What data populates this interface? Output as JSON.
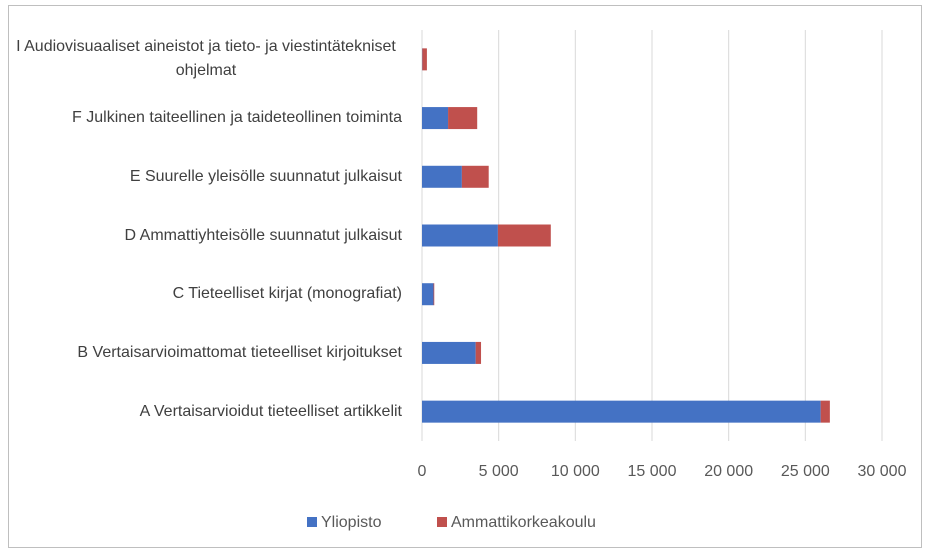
{
  "chart_data": {
    "type": "stacked-barh",
    "categories": [
      "A Vertaisarvioidut tieteelliset artikkelit",
      "B Vertaisarvioimattomat tieteelliset kirjoitukset",
      "C Tieteelliset kirjat (monografiat)",
      "D Ammattiyhteisölle suunnatut julkaisut",
      "E Suurelle yleisölle suunnatut julkaisut",
      "F Julkinen taiteellinen ja taideteollinen toiminta",
      "I Audiovisuaaliset aineistot ja tieto- ja viestintätekniset ohjelmat"
    ],
    "series": [
      {
        "name": "Yliopisto",
        "color": "#4472c4",
        "values": [
          26000,
          3500,
          750,
          4950,
          2600,
          1700,
          20
        ]
      },
      {
        "name": "Ammattikorkeakoulu",
        "color": "#c0504d",
        "values": [
          600,
          350,
          50,
          3450,
          1750,
          1900,
          300
        ]
      }
    ],
    "xlim": [
      0,
      30000
    ],
    "xticks": [
      0,
      {
        "value": 5000,
        "label": "5 000"
      },
      {
        "value": 10000,
        "label": "10 000"
      },
      {
        "value": 15000,
        "label": "15 000"
      },
      {
        "value": 20000,
        "label": "20 000"
      },
      {
        "value": 25000,
        "label": "25 000"
      },
      {
        "value": 30000,
        "label": "30 000"
      }
    ],
    "grid": true,
    "legend": "bottom"
  }
}
